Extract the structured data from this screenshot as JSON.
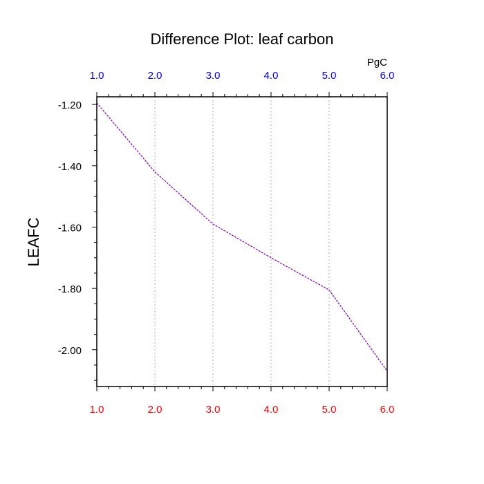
{
  "chart_data": {
    "type": "line",
    "title": "Difference Plot: leaf carbon",
    "ylabel": "LEAFC",
    "units": "PgC",
    "xlim": [
      1.0,
      6.0
    ],
    "ylim": [
      -2.12,
      -1.175
    ],
    "grid": "vertical dotted",
    "x": [
      1.0,
      2.0,
      3.0,
      4.0,
      5.0,
      6.0
    ],
    "series": [
      {
        "values": [
          -1.195,
          -1.42,
          -1.59,
          -1.7,
          -1.805,
          -2.07
        ],
        "color": "#7b00c8",
        "style": "dashed"
      }
    ],
    "x_ticks_bottom": [
      "1.0",
      "2.0",
      "3.0",
      "4.0",
      "5.0",
      "6.0"
    ],
    "x_ticks_top": [
      "1.0",
      "2.0",
      "3.0",
      "4.0",
      "5.0",
      "6.0"
    ],
    "y_ticks": [
      {
        "value": -1.2,
        "label": "-1.20"
      },
      {
        "value": -1.4,
        "label": "-1.40"
      },
      {
        "value": -1.6,
        "label": "-1.60"
      },
      {
        "value": -1.8,
        "label": "-1.80"
      },
      {
        "value": -2.0,
        "label": "-2.00"
      }
    ],
    "colors": {
      "bottom_ticks": "#ff0000",
      "top_ticks": "#0000ff",
      "axis": "#000000",
      "grid": "#b0b0b0"
    }
  }
}
